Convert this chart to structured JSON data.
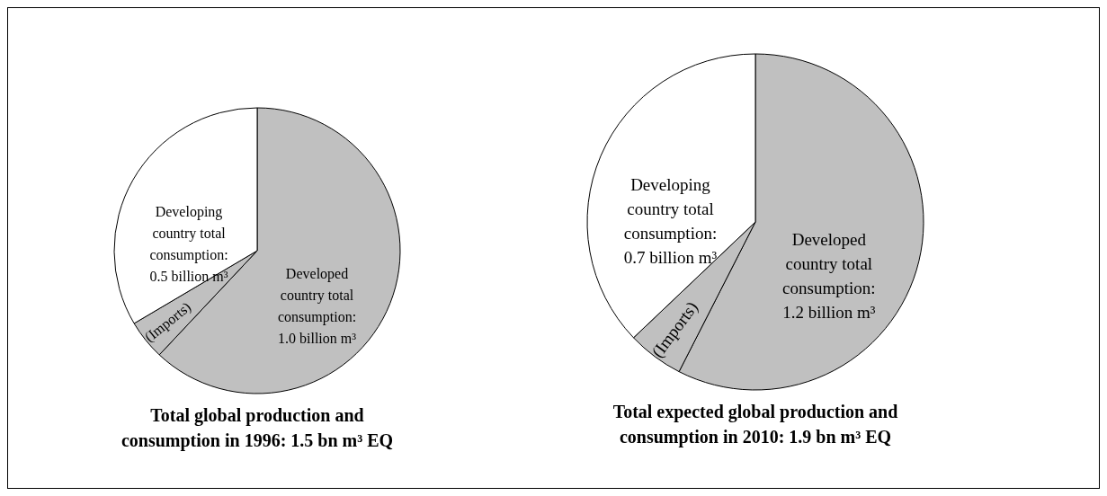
{
  "chart_data": [
    {
      "type": "pie",
      "title": "Total global production and consumption in 1996: 1.5 bn m³ EQ",
      "categories": [
        "Developed country total consumption: 1.0 billion m³",
        "(Imports)",
        "Developing country total consumption: 0.5 billion m³"
      ],
      "values": [
        62,
        4.5,
        33.5
      ],
      "colors": [
        "#c0c0c0",
        "#c0c0c0",
        "#ffffff"
      ]
    },
    {
      "type": "pie",
      "title": "Total expected global production and consumption in 2010: 1.9 bn m³ EQ",
      "categories": [
        "Developed country total consumption: 1.2 billion m³",
        "(Imports)",
        "Developing country total consumption: 0.7 billion m³"
      ],
      "values": [
        57.5,
        5.4,
        37.1
      ],
      "colors": [
        "#c0c0c0",
        "#c0c0c0",
        "#ffffff"
      ]
    }
  ]
}
